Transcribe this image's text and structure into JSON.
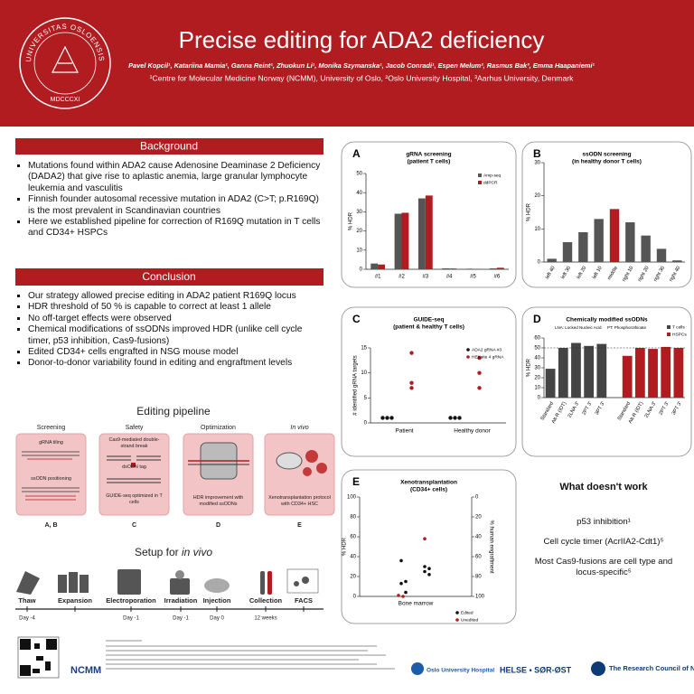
{
  "header": {
    "university": "UNIVERSITAS OSLOENSIS",
    "university_year": "MDCCCXI",
    "title": "Precise editing for ADA2 deficiency",
    "authors": "Pavel Kopcil¹, Katariina Mamia¹, Ganna Reint¹, Zhuokun Li¹, Monika Szymanska¹, Jacob Conradi¹, Espen Melum², Rasmus Bak³, Emma Haapaniemi¹",
    "affiliations": "¹Centre for Molecular Medicine Norway (NCMM), University of Oslo, ²Oslo University Hospital, ³Aarhus University, Denmark"
  },
  "background": {
    "heading": "Background",
    "bullets": [
      "Mutations found within ADA2 cause Adenosine Deaminase 2 Deficiency (DADA2) that give rise to aplastic anemia, large granular lymphocyte leukemia and vasculitis",
      "Finnish founder autosomal recessive mutation in ADA2 (C>T; p.R169Q) is the most prevalent in Scandinavian countries",
      "Here we established pipeline for correction of R169Q mutation in T cells and CD34+ HSPCs"
    ]
  },
  "conclusion": {
    "heading": "Conclusion",
    "bullets": [
      "Our strategy allowed precise editing in ADA2 patient R169Q locus",
      "HDR threshold of 50 % is capable to correct at least 1 allele",
      "No off-target effects were observed",
      "Chemical modifications of ssODNs improved HDR (unlike cell cycle timer, p53 inhibition, Cas9-fusions)",
      "Edited CD34+ cells engrafted in NSG mouse model",
      "Donor-to-donor variability found in editing and engraftment levels"
    ]
  },
  "pipeline": {
    "heading": "Editing pipeline",
    "steps": [
      {
        "title": "Screening",
        "texts": [
          "gRNA tiling",
          "ssODN positioning"
        ],
        "ref": "A, B"
      },
      {
        "title": "Safety",
        "texts": [
          "Cas9-mediated double-strand break",
          "dsODN tag",
          "GUIDE-seq optimized in T cells"
        ],
        "ref": "C"
      },
      {
        "title": "Optimization",
        "texts": [
          "HDR improvement with modified ssODNs"
        ],
        "ref": "D"
      },
      {
        "title": "In vivo",
        "texts": [
          "Xenotransplantation protocol with CD34+ HSC"
        ],
        "ref": "E"
      }
    ]
  },
  "setup": {
    "heading": "Setup for ",
    "heading_italic": "in vivo",
    "steps": [
      {
        "label": "Thaw",
        "day": "Day -4"
      },
      {
        "label": "Expansion"
      },
      {
        "label": "Electroporation",
        "day": "Day -1"
      },
      {
        "label": "Irradiation",
        "day": "Day -1"
      },
      {
        "label": "Injection",
        "day": "Day 0"
      },
      {
        "label": "Collection",
        "day": "12 weeks"
      },
      {
        "label": "FACS"
      }
    ]
  },
  "not_working": {
    "heading": "What doesn't work",
    "items": [
      "p53 inhibition¹",
      "Cell cycle timer (AcrIIA2-Cdt1)⁵",
      "Most Cas9-fusions are cell type and locus-specific⁵"
    ]
  },
  "footer": {
    "logos": [
      "NCMM",
      "Oslo University Hospital",
      "HELSE • SØR-ØST",
      "The Research Council of Norway"
    ]
  },
  "chart_data": [
    {
      "type": "grouped_bar",
      "panel": "A",
      "title": "gRNA screening",
      "subtitle": "(patient T cells)",
      "y_label": "% HDR",
      "categories": [
        "#1",
        "#2",
        "#3",
        "#4",
        "#5",
        "#6"
      ],
      "series": [
        {
          "name": "Amp-seq",
          "color": "#555555",
          "values": [
            3,
            29,
            37,
            0.5,
            0.3,
            0.5
          ]
        },
        {
          "name": "ddPCR",
          "color": "#b01c20",
          "values": [
            2.5,
            29.5,
            38.5,
            0.4,
            0.2,
            0.8
          ]
        }
      ],
      "ylim": [
        0,
        50
      ],
      "yticks": [
        0,
        10,
        20,
        30,
        40,
        50
      ],
      "legend": "upper right"
    },
    {
      "type": "bar",
      "panel": "B",
      "title": "ssODN screening",
      "subtitle": "(in healthy donor T cells)",
      "y_label": "% HDR",
      "categories": [
        "left 40",
        "left 30",
        "left 20",
        "left 10",
        "middle",
        "right 10",
        "right 20",
        "right 30",
        "right 40"
      ],
      "values": [
        1,
        6,
        9,
        13,
        16,
        12,
        8,
        4,
        0.5
      ],
      "colors": [
        "#555555",
        "#555555",
        "#555555",
        "#555555",
        "#b01c20",
        "#555555",
        "#555555",
        "#555555",
        "#555555"
      ],
      "ylim": [
        0,
        30
      ],
      "yticks": [
        0,
        10,
        20,
        30
      ]
    },
    {
      "type": "strip",
      "panel": "C",
      "title": "GUIDE-seq",
      "subtitle": "(patient & healthy T cells)",
      "y_label": "# identified gRNA targets",
      "categories": [
        "Patient",
        "Healthy donor"
      ],
      "series": [
        {
          "name": "ADA2 gRNA #3",
          "color": "#111111",
          "values": [
            [
              1,
              1,
              1
            ],
            [
              1,
              1,
              1
            ]
          ]
        },
        {
          "name": "HEKsite 4 gRNA",
          "color": "#b01c20",
          "values": [
            [
              14,
              8,
              7
            ],
            [
              13,
              10,
              7
            ]
          ]
        }
      ],
      "ylim": [
        0,
        15
      ],
      "yticks": [
        0,
        5,
        10,
        15
      ],
      "legend": "upper right"
    },
    {
      "type": "block_bar",
      "panel": "D",
      "title": "Chemically modified ssODNs",
      "annotations": [
        "LNA: Locked Nucleic Acid",
        "PT: Phosphorothioate"
      ],
      "y_label": "% HDR",
      "series": [
        {
          "name": "T cells",
          "color": "#444444",
          "categories": [
            "Standard",
            "Alt-R (IDT)",
            "2LNA 3'",
            "2PT 3'",
            "3PT 3'"
          ],
          "values": [
            29,
            50,
            55,
            52,
            54
          ]
        },
        {
          "name": "HSPCs",
          "color": "#b01c20",
          "categories": [
            "Standard",
            "Alt-R (IDT)",
            "2LNA 3'",
            "2PT 3'",
            "3PT 3'"
          ],
          "values": [
            42,
            50,
            49,
            51,
            50
          ]
        }
      ],
      "reference_line": 50,
      "ylim": [
        0,
        60
      ],
      "yticks": [
        0,
        10,
        20,
        30,
        40,
        50,
        60
      ],
      "legend": "upper right"
    },
    {
      "type": "dual_strip",
      "panel": "E",
      "title": "Xenotransplantation",
      "subtitle": "(CD34+ cells)",
      "y_label": "% HDR",
      "y2_label": "% human engraftment",
      "categories": [
        "Bone marrow"
      ],
      "series": [
        {
          "name": "Edited",
          "color": "#111111",
          "values": [
            36,
            15,
            13,
            4
          ],
          "engraftment": [
            70,
            72,
            75,
            78
          ]
        },
        {
          "name": "Unedited",
          "color": "#b01c20",
          "values": [
            1,
            0
          ],
          "engraftment": [
            42
          ]
        }
      ],
      "ylim": [
        0,
        100
      ],
      "yticks": [
        0,
        20,
        40,
        60,
        80,
        100
      ],
      "y2lim": [
        100,
        0
      ],
      "y2ticks": [
        0,
        20,
        40,
        60,
        80,
        100
      ],
      "legend": "lower right"
    }
  ]
}
